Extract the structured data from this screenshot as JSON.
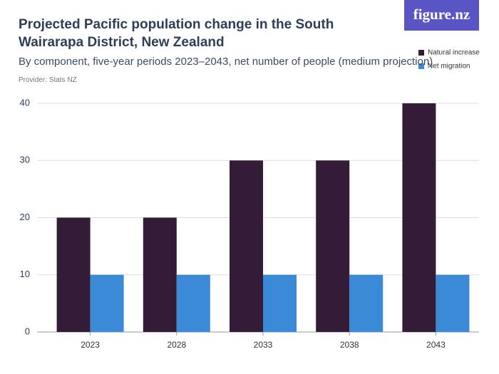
{
  "chart_data": {
    "type": "bar",
    "title": "Projected Pacific population change in the South Wairarapa District, New Zealand",
    "subtitle": "By component, five-year periods 2023–2043, net number of people (medium projection)",
    "provider": "Provider: Stats NZ",
    "logo": "figure.nz",
    "categories": [
      "2023",
      "2028",
      "2033",
      "2038",
      "2043"
    ],
    "series": [
      {
        "name": "Natural increase",
        "color": "#341c38",
        "values": [
          20,
          20,
          30,
          30,
          40
        ]
      },
      {
        "name": "Net migration",
        "color": "#3b8ad8",
        "values": [
          10,
          10,
          10,
          10,
          10
        ]
      }
    ],
    "ylim": [
      0,
      40
    ],
    "yticks": [
      0,
      10,
      20,
      30,
      40
    ],
    "grid": true,
    "legend": "top-right"
  }
}
